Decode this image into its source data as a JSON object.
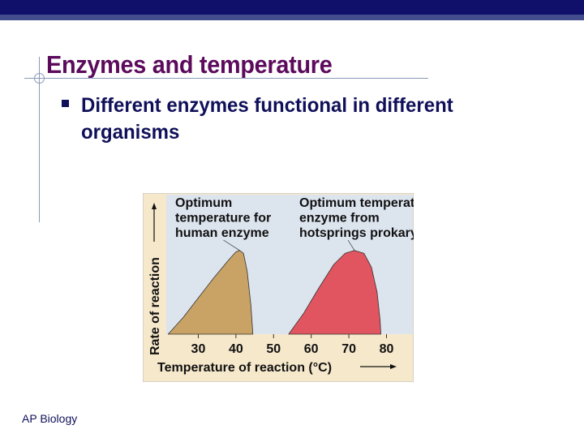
{
  "slide": {
    "title": "Enzymes and temperature",
    "bullet": "Different enzymes functional in different organisms",
    "footer": "AP Biology",
    "colors": {
      "topbar": "#10106a",
      "title": "#5c0b5c",
      "text": "#10105a"
    }
  },
  "chart_data": {
    "type": "area",
    "title": "",
    "xlabel": "Temperature of reaction (°C)",
    "ylabel": "Rate of reaction",
    "xlim": [
      21.5,
      87
    ],
    "ylim": [
      0,
      1
    ],
    "xticks": [
      30,
      40,
      50,
      60,
      70,
      80
    ],
    "grid": false,
    "annotations": [
      {
        "text": [
          "Optimum",
          "temperature for",
          "human enzyme"
        ],
        "target_x": 41
      },
      {
        "text": [
          "Optimum temperature for",
          "enzyme from",
          "hotsprings prokaryote"
        ],
        "target_x": 71.5
      }
    ],
    "series": [
      {
        "color": "#c9a265",
        "x": [
          22,
          26,
          30,
          34,
          38,
          40,
          41,
          42,
          43,
          44,
          44.5
        ],
        "y": [
          0,
          0.12,
          0.26,
          0.4,
          0.53,
          0.59,
          0.6,
          0.58,
          0.45,
          0.2,
          0
        ]
      },
      {
        "color": "#e05560",
        "x": [
          54,
          58,
          62,
          66,
          69,
          71.5,
          74,
          76,
          77.5,
          78.3,
          78.5
        ],
        "y": [
          0,
          0.15,
          0.33,
          0.5,
          0.58,
          0.6,
          0.58,
          0.48,
          0.3,
          0.1,
          0
        ]
      }
    ]
  }
}
